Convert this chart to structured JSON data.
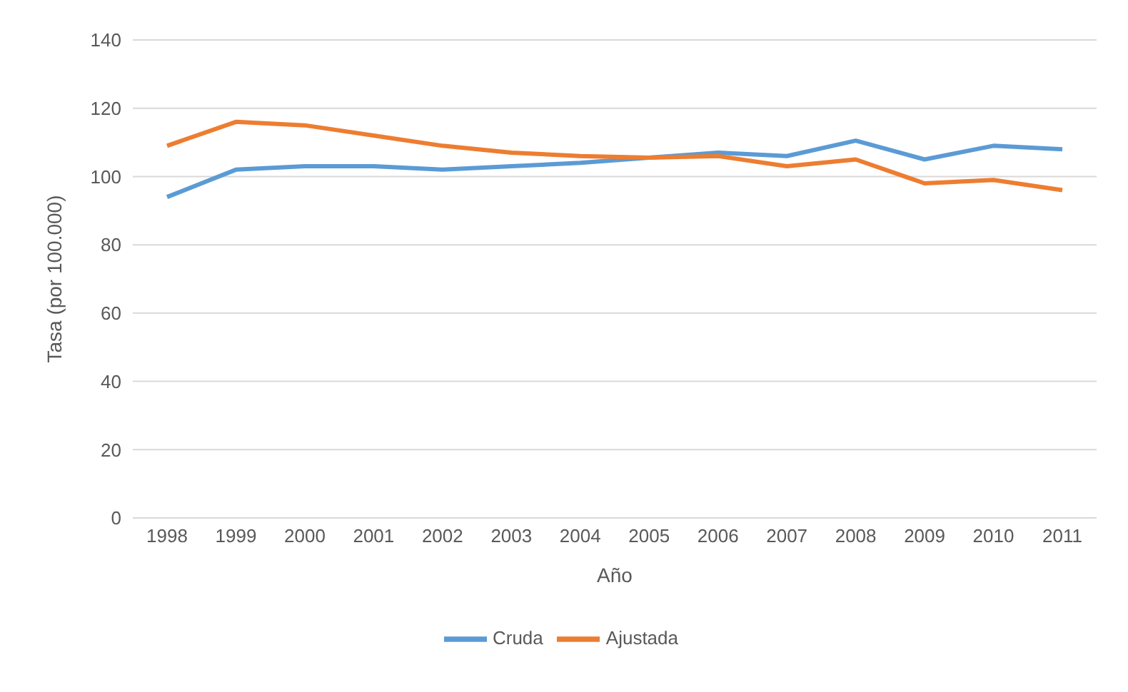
{
  "chart_data": {
    "type": "line",
    "xlabel": "Año",
    "ylabel": "Tasa (por 100.000)",
    "categories": [
      "1998",
      "1999",
      "2000",
      "2001",
      "2002",
      "2003",
      "2004",
      "2005",
      "2006",
      "2007",
      "2008",
      "2009",
      "2010",
      "2011"
    ],
    "series": [
      {
        "name": "Cruda",
        "color": "#5b9bd5",
        "values": [
          94,
          102,
          103,
          103,
          102,
          103,
          104,
          105.5,
          107,
          106,
          110.5,
          105,
          109,
          108
        ]
      },
      {
        "name": "Ajustada",
        "color": "#ed7d31",
        "values": [
          109,
          116,
          115,
          112,
          109,
          107,
          106,
          105.5,
          106,
          103,
          105,
          98,
          99,
          96
        ]
      }
    ],
    "ylim": [
      0,
      140
    ],
    "yticks": [
      0,
      20,
      40,
      60,
      80,
      100,
      120,
      140
    ],
    "grid": "y",
    "legend": "bottom",
    "marker": "none"
  }
}
